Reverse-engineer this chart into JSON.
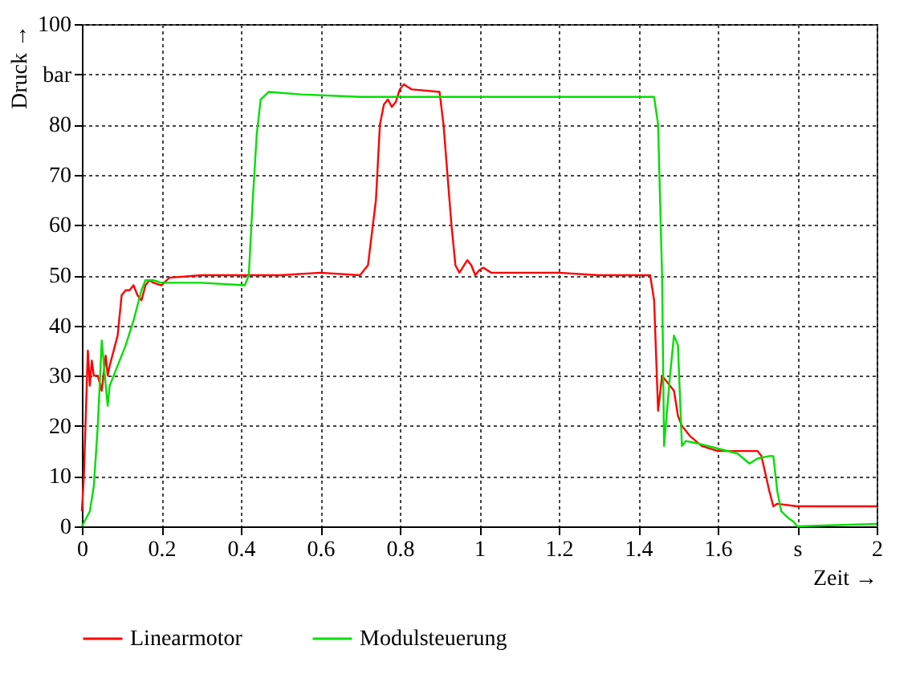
{
  "chart_data": {
    "type": "line",
    "xlabel": "Zeit →",
    "ylabel": "Druck →",
    "xlim": [
      0,
      2
    ],
    "ylim": [
      0,
      100
    ],
    "xticks": [
      0,
      0.2,
      0.4,
      0.6,
      0.8,
      1,
      1.2,
      1.4,
      1.6,
      {
        "value": 1.8,
        "label": "s"
      },
      2
    ],
    "yticks": [
      0,
      10,
      20,
      30,
      40,
      50,
      60,
      70,
      80,
      {
        "value": 90,
        "label": "bar"
      },
      100
    ],
    "grid": true,
    "legend": "bottom",
    "line_style": "solid",
    "marker": "none",
    "series": [
      {
        "name": "Linearmotor",
        "color": "#ff0000",
        "x": [
          0,
          0.005,
          0.015,
          0.02,
          0.025,
          0.03,
          0.04,
          0.05,
          0.06,
          0.065,
          0.07,
          0.08,
          0.09,
          0.1,
          0.11,
          0.12,
          0.13,
          0.14,
          0.15,
          0.16,
          0.17,
          0.18,
          0.2,
          0.22,
          0.3,
          0.4,
          0.5,
          0.6,
          0.7,
          0.72,
          0.74,
          0.75,
          0.76,
          0.77,
          0.78,
          0.79,
          0.8,
          0.81,
          0.83,
          0.9,
          0.91,
          0.93,
          0.94,
          0.95,
          0.97,
          0.98,
          0.99,
          1.0,
          1.01,
          1.03,
          1.2,
          1.3,
          1.43,
          1.44,
          1.45,
          1.46,
          1.47,
          1.48,
          1.49,
          1.5,
          1.51,
          1.53,
          1.56,
          1.6,
          1.65,
          1.7,
          1.71,
          1.73,
          1.74,
          1.75,
          1.8,
          1.9,
          2.0
        ],
        "values": [
          3,
          10,
          35,
          28,
          33,
          30,
          30,
          27,
          34,
          30,
          32,
          35,
          38,
          46,
          47,
          47,
          48,
          46,
          45,
          48,
          49,
          48.5,
          48,
          49.5,
          50,
          50,
          50,
          50.5,
          50,
          52,
          65,
          80,
          84,
          85,
          83.5,
          84.5,
          87,
          88,
          87,
          86.5,
          80,
          60,
          52,
          50.5,
          53,
          52,
          50,
          51,
          51.5,
          50.5,
          50.5,
          50,
          50,
          45,
          23,
          30,
          29,
          28,
          27,
          22,
          20,
          18,
          16,
          15,
          15,
          15,
          14,
          7,
          4,
          4.5,
          4,
          4,
          4
        ]
      },
      {
        "name": "Modulsteuerung",
        "color": "#00e000",
        "x": [
          0,
          0.02,
          0.03,
          0.04,
          0.05,
          0.06,
          0.065,
          0.07,
          0.09,
          0.11,
          0.13,
          0.14,
          0.15,
          0.16,
          0.18,
          0.2,
          0.3,
          0.41,
          0.42,
          0.43,
          0.44,
          0.45,
          0.47,
          0.55,
          0.7,
          1.0,
          1.44,
          1.45,
          1.46,
          1.465,
          1.48,
          1.49,
          1.5,
          1.51,
          1.52,
          1.55,
          1.6,
          1.65,
          1.68,
          1.7,
          1.73,
          1.74,
          1.75,
          1.76,
          1.78,
          1.79,
          1.8,
          2.0
        ],
        "values": [
          0,
          3,
          8,
          20,
          37,
          28,
          24,
          28,
          32,
          36,
          41,
          44,
          47,
          49,
          49,
          48.5,
          48.5,
          48,
          50,
          65,
          78,
          85,
          86.5,
          86,
          85.5,
          85.5,
          85.5,
          80,
          50,
          16,
          30,
          38,
          36,
          16,
          17,
          16.5,
          15.5,
          14.5,
          12.5,
          13.5,
          14,
          14,
          7,
          3,
          1.5,
          1,
          0,
          0.5
        ]
      }
    ]
  }
}
